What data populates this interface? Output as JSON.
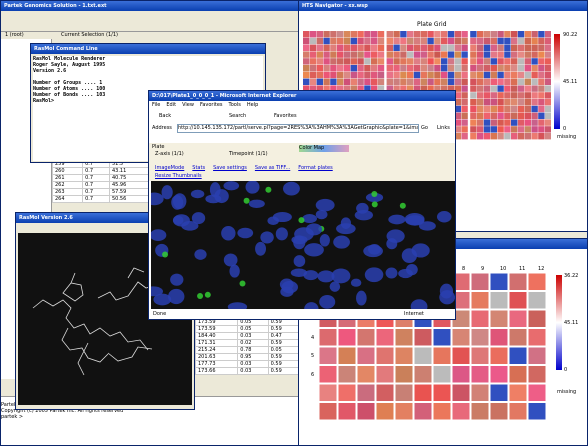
{
  "main": {
    "title": "Partek Genomics Solution - 1.txt.ext",
    "tabs": [
      "1 (root)",
      "Current Selection (1/1)"
    ],
    "console": [
      "Partek >",
      "Copyright (c) 2005 Partek Inc. All rights reserved",
      "partek >"
    ]
  },
  "rasmol_cmd": {
    "title": "RasMol Command Line",
    "lines": [
      "RasMol Molecule Renderer",
      "Roger Sayle, August 1995",
      "Version 2.6",
      "",
      "Number of Groups .... 1",
      "Number of Atoms .... 100",
      "Number of Bonds .... 103",
      "RasMol>"
    ]
  },
  "rasmol_view": {
    "title": "RasMol Version 2.6"
  },
  "hts": {
    "title": "HTS Navigator - xx.wsp",
    "heading": "Plate Grid",
    "scale": [
      "90.22",
      "45.11",
      "0"
    ],
    "missing": "missing"
  },
  "plate": {
    "columns": [
      "8",
      "9",
      "10",
      "11",
      "12"
    ],
    "rows": [
      "1",
      "2",
      "3",
      "4",
      "5",
      "6"
    ],
    "scale": [
      "36.22",
      "45.11",
      "0"
    ],
    "missing": "missing"
  },
  "ie": {
    "title": "D:\\017\\Plate1_0_0_0_1 - Microsoft Internet Explorer",
    "menu": [
      "File",
      "Edit",
      "View",
      "Favorites",
      "Tools",
      "Help"
    ],
    "back": "Back",
    "search": "Search",
    "favorites": "Favorites",
    "address_label": "Address",
    "address": "http://10.145.135.172/partl/serve.pl?page=2RES%3A%3AHM%3A%3AGetGraphic&plate=1&image=4#",
    "go": "Go",
    "links": "Links",
    "plate_label": "Plate",
    "zaxis": "Z-axis (1/1)",
    "timepoint": "Timepoint (1/1)",
    "colormap": "Color Map",
    "links_row": [
      "ImageMode",
      "Stats",
      "Save settings",
      "Save as TIFF...",
      "Format plates"
    ],
    "resize": "Resize Thumbnails",
    "status": "Done",
    "zone": "Internet"
  },
  "table_top": {
    "rows": [
      [
        "259",
        "0.7",
        "51.5"
      ],
      [
        "260",
        "0.7",
        "43.11"
      ],
      [
        "261",
        "0.7",
        "40.75"
      ],
      [
        "262",
        "0.7",
        "45.96"
      ],
      [
        "263",
        "0.7",
        "57.59"
      ],
      [
        "264",
        "0.7",
        "50.56"
      ]
    ]
  },
  "table_bottom": {
    "rows": [
      [
        "173.59",
        "0.05",
        "0.59"
      ],
      [
        "173.59",
        "0.05",
        "0.59"
      ],
      [
        "184.40",
        "0.03",
        "0.47"
      ],
      [
        "171.31",
        "0.02",
        "0.59"
      ],
      [
        "215.24",
        "0.78",
        "0.05"
      ],
      [
        "201.63",
        "0.95",
        "0.59"
      ],
      [
        "177.73",
        "0.03",
        "0.59"
      ],
      [
        "173.66",
        "0.03",
        "0.59"
      ]
    ]
  }
}
